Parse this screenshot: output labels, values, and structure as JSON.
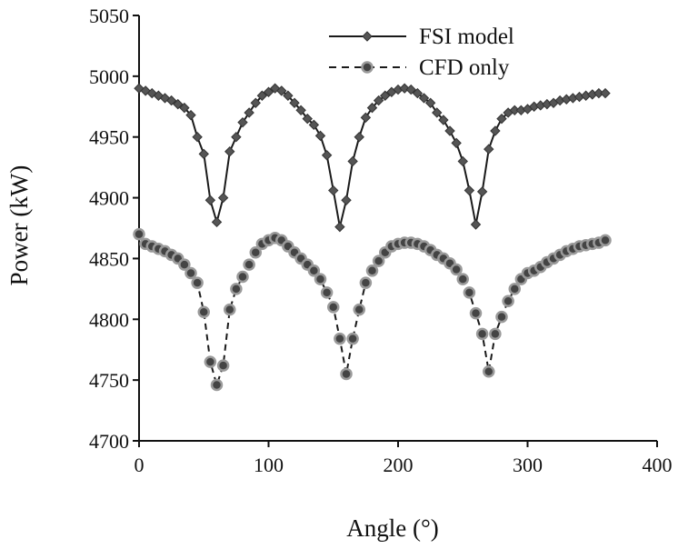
{
  "chart_data": {
    "type": "line",
    "xlabel": "Angle (°)",
    "ylabel": "Power (kW)",
    "xlim": [
      0,
      400
    ],
    "ylim": [
      4700,
      5050
    ],
    "xticks": [
      "0",
      "100",
      "200",
      "300",
      "400"
    ],
    "yticks": [
      "4700",
      "4750",
      "4800",
      "4850",
      "4900",
      "4950",
      "5000",
      "5050"
    ],
    "grid": false,
    "legend_position": "top-right",
    "series": [
      {
        "name": "FSI model",
        "line_style": "solid",
        "marker": "diamond",
        "color": "#1a1a1a",
        "marker_color": "#555555",
        "x": [
          0,
          5,
          10,
          15,
          20,
          25,
          30,
          35,
          40,
          45,
          50,
          55,
          60,
          65,
          70,
          75,
          80,
          85,
          90,
          95,
          100,
          105,
          110,
          115,
          120,
          125,
          130,
          135,
          140,
          145,
          150,
          155,
          160,
          165,
          170,
          175,
          180,
          185,
          190,
          195,
          200,
          205,
          210,
          215,
          220,
          225,
          230,
          235,
          240,
          245,
          250,
          255,
          260,
          265,
          270,
          275,
          280,
          285,
          290,
          295,
          300,
          305,
          310,
          315,
          320,
          325,
          330,
          335,
          340,
          345,
          350,
          355,
          360
        ],
        "values": [
          4990,
          4988,
          4986,
          4984,
          4982,
          4980,
          4977,
          4974,
          4968,
          4950,
          4936,
          4898,
          4880,
          4900,
          4938,
          4950,
          4962,
          4970,
          4978,
          4984,
          4987,
          4990,
          4988,
          4984,
          4978,
          4972,
          4965,
          4960,
          4951,
          4935,
          4906,
          4876,
          4898,
          4930,
          4950,
          4966,
          4974,
          4980,
          4984,
          4987,
          4989,
          4990,
          4989,
          4986,
          4982,
          4978,
          4970,
          4964,
          4955,
          4945,
          4930,
          4906,
          4878,
          4905,
          4940,
          4955,
          4965,
          4970,
          4972,
          4972,
          4973,
          4975,
          4976,
          4977,
          4978,
          4980,
          4981,
          4982,
          4983,
          4984,
          4985,
          4986,
          4986
        ]
      },
      {
        "name": "CFD only",
        "line_style": "dashed",
        "marker": "circle",
        "color": "#1a1a1a",
        "marker_color": "#9a9a9a",
        "x": [
          0,
          5,
          10,
          15,
          20,
          25,
          30,
          35,
          40,
          45,
          50,
          55,
          60,
          65,
          70,
          75,
          80,
          85,
          90,
          95,
          100,
          105,
          110,
          115,
          120,
          125,
          130,
          135,
          140,
          145,
          150,
          155,
          160,
          165,
          170,
          175,
          180,
          185,
          190,
          195,
          200,
          205,
          210,
          215,
          220,
          225,
          230,
          235,
          240,
          245,
          250,
          255,
          260,
          265,
          270,
          275,
          280,
          285,
          290,
          295,
          300,
          305,
          310,
          315,
          320,
          325,
          330,
          335,
          340,
          345,
          350,
          355,
          360
        ],
        "values": [
          4870,
          4862,
          4860,
          4858,
          4856,
          4853,
          4850,
          4845,
          4838,
          4830,
          4806,
          4765,
          4746,
          4762,
          4808,
          4825,
          4835,
          4845,
          4855,
          4862,
          4865,
          4867,
          4865,
          4860,
          4855,
          4850,
          4845,
          4840,
          4833,
          4822,
          4810,
          4784,
          4755,
          4784,
          4808,
          4830,
          4840,
          4848,
          4855,
          4860,
          4862,
          4863,
          4863,
          4862,
          4860,
          4857,
          4853,
          4850,
          4846,
          4841,
          4833,
          4822,
          4805,
          4788,
          4757,
          4788,
          4802,
          4815,
          4825,
          4833,
          4838,
          4840,
          4843,
          4847,
          4850,
          4853,
          4856,
          4858,
          4860,
          4861,
          4862,
          4863,
          4865
        ]
      }
    ]
  }
}
